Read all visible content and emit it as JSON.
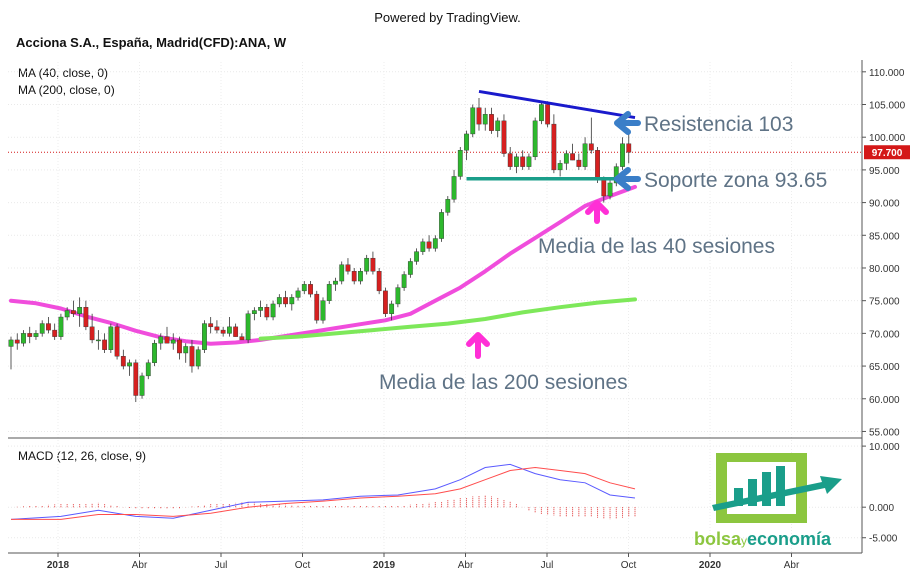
{
  "powered_by": "Powered by TradingView.",
  "symbol_title": "Acciona S.A., España, Madrid(CFD):ANA, W",
  "indicators": {
    "ma40_label": "MA (40, close, 0)",
    "ma200_label": "MA (200, close, 0)",
    "macd_label": "MACD (12, 26, close, 9)"
  },
  "price_tag": "97.700",
  "annotations": {
    "resistance": "Resistencia 103",
    "support": "Soporte zona 93.65",
    "ma40_note": "Media de las 40 sesiones",
    "ma200_note": "Media de las 200 sesiones"
  },
  "logo": {
    "text_a": "bolsa",
    "text_y": "y",
    "text_b": "economía"
  },
  "colors": {
    "up": "#2db82d",
    "down": "#d62020",
    "ma40": "#f04ddc",
    "ma200": "#7ee85a",
    "resistance_line": "#1a1acc",
    "support_line": "#1a9e8a",
    "arrow_blue": "#3a7ec8",
    "arrow_magenta": "#ff2fd6",
    "macd_line": "#5a5aff",
    "signal_line": "#ff4d4d",
    "annotation_text": "#5f7386",
    "price_tag_bg": "#d41818",
    "logo_green": "#8cc63f",
    "logo_teal": "#1a9e8a"
  },
  "chart_data": [
    {
      "type": "candlestick",
      "title": "Acciona S.A., España, Madrid(CFD):ANA, W",
      "x_ticks": [
        "2018",
        "Abr",
        "Jul",
        "Oct",
        "2019",
        "Abr",
        "Jul",
        "Oct",
        "2020",
        "Abr"
      ],
      "y_ticks": [
        "110.000",
        "105.000",
        "100.000",
        "95.000",
        "90.000",
        "85.000",
        "80.000",
        "75.000",
        "70.000",
        "65.000",
        "60.000",
        "55.000"
      ],
      "ylim": [
        54,
        111.5
      ],
      "last_price": 97.7,
      "candles": [
        [
          68.0,
          69.5,
          64.5,
          69.0
        ],
        [
          69.0,
          70.0,
          67.5,
          68.5
        ],
        [
          68.5,
          70.5,
          68.0,
          70.0
        ],
        [
          70.0,
          71.0,
          68.5,
          69.5
        ],
        [
          69.5,
          70.5,
          69.0,
          70.0
        ],
        [
          70.0,
          72.0,
          69.5,
          71.5
        ],
        [
          71.5,
          72.5,
          70.0,
          70.5
        ],
        [
          70.5,
          71.5,
          69.0,
          69.5
        ],
        [
          69.5,
          73.0,
          69.0,
          72.5
        ],
        [
          72.5,
          74.0,
          72.0,
          73.5
        ],
        [
          73.5,
          75.0,
          72.5,
          73.0
        ],
        [
          73.0,
          75.5,
          71.0,
          74.0
        ],
        [
          74.0,
          75.0,
          70.5,
          71.0
        ],
        [
          71.0,
          73.0,
          68.5,
          69.0
        ],
        [
          69.0,
          70.5,
          67.5,
          69.0
        ],
        [
          69.0,
          70.0,
          67.0,
          67.5
        ],
        [
          67.5,
          71.5,
          67.0,
          71.0
        ],
        [
          71.0,
          71.5,
          66.0,
          66.5
        ],
        [
          66.5,
          67.5,
          64.5,
          65.0
        ],
        [
          65.0,
          66.0,
          63.5,
          65.5
        ],
        [
          65.5,
          66.0,
          59.5,
          60.5
        ],
        [
          60.5,
          64.0,
          60.0,
          63.5
        ],
        [
          63.5,
          66.0,
          63.0,
          65.5
        ],
        [
          65.5,
          69.0,
          65.0,
          68.5
        ],
        [
          68.5,
          70.0,
          67.5,
          69.5
        ],
        [
          69.5,
          71.0,
          68.5,
          68.5
        ],
        [
          68.5,
          70.0,
          67.5,
          69.0
        ],
        [
          69.0,
          69.5,
          66.0,
          67.0
        ],
        [
          67.0,
          68.5,
          65.5,
          68.0
        ],
        [
          68.0,
          69.0,
          64.0,
          65.0
        ],
        [
          65.0,
          68.0,
          64.5,
          67.5
        ],
        [
          67.5,
          72.0,
          67.0,
          71.5
        ],
        [
          71.5,
          72.5,
          70.0,
          71.0
        ],
        [
          71.0,
          72.0,
          70.0,
          70.5
        ],
        [
          70.5,
          71.0,
          69.5,
          70.0
        ],
        [
          70.0,
          72.5,
          69.5,
          71.0
        ],
        [
          71.0,
          71.5,
          69.5,
          69.5
        ],
        [
          69.5,
          70.0,
          69.0,
          69.0
        ],
        [
          69.0,
          73.5,
          68.5,
          73.0
        ],
        [
          73.0,
          74.0,
          72.0,
          73.5
        ],
        [
          73.5,
          75.0,
          72.5,
          74.0
        ],
        [
          74.0,
          74.5,
          72.0,
          72.5
        ],
        [
          72.5,
          75.0,
          72.0,
          74.5
        ],
        [
          74.5,
          76.0,
          74.0,
          75.5
        ],
        [
          75.5,
          76.5,
          74.0,
          74.5
        ],
        [
          74.5,
          76.0,
          73.5,
          75.5
        ],
        [
          75.5,
          77.0,
          75.0,
          76.5
        ],
        [
          76.5,
          78.0,
          76.0,
          77.5
        ],
        [
          77.5,
          78.0,
          75.5,
          76.0
        ],
        [
          76.0,
          76.5,
          71.5,
          72.0
        ],
        [
          72.0,
          75.5,
          71.5,
          75.0
        ],
        [
          75.0,
          78.0,
          74.5,
          77.5
        ],
        [
          77.5,
          78.5,
          76.5,
          78.0
        ],
        [
          78.0,
          81.0,
          77.5,
          80.5
        ],
        [
          80.5,
          81.5,
          79.0,
          79.5
        ],
        [
          79.5,
          80.0,
          77.5,
          78.0
        ],
        [
          78.0,
          80.0,
          77.5,
          79.5
        ],
        [
          79.5,
          82.0,
          79.0,
          81.5
        ],
        [
          81.5,
          82.5,
          79.0,
          79.5
        ],
        [
          79.5,
          80.0,
          76.0,
          76.5
        ],
        [
          76.5,
          77.0,
          72.5,
          73.0
        ],
        [
          73.0,
          75.0,
          72.0,
          74.5
        ],
        [
          74.5,
          77.5,
          74.0,
          77.0
        ],
        [
          77.0,
          79.5,
          76.5,
          79.0
        ],
        [
          79.0,
          81.5,
          78.5,
          81.0
        ],
        [
          81.0,
          83.0,
          80.5,
          82.5
        ],
        [
          82.5,
          84.5,
          82.0,
          84.0
        ],
        [
          84.0,
          85.0,
          82.5,
          83.0
        ],
        [
          83.0,
          85.0,
          82.5,
          84.5
        ],
        [
          84.5,
          89.0,
          84.0,
          88.5
        ],
        [
          88.5,
          91.0,
          88.0,
          90.5
        ],
        [
          90.5,
          95.0,
          90.0,
          94.0
        ],
        [
          94.0,
          98.5,
          93.5,
          98.0
        ],
        [
          98.0,
          101.0,
          96.5,
          100.5
        ],
        [
          100.5,
          105.0,
          100.0,
          104.5
        ],
        [
          104.5,
          106.0,
          101.0,
          102.0
        ],
        [
          102.0,
          104.5,
          101.0,
          103.5
        ],
        [
          103.5,
          104.5,
          100.5,
          101.0
        ],
        [
          101.0,
          103.0,
          100.0,
          102.5
        ],
        [
          102.5,
          103.5,
          97.0,
          97.5
        ],
        [
          97.5,
          98.5,
          95.0,
          95.5
        ],
        [
          95.5,
          97.5,
          94.5,
          97.0
        ],
        [
          97.0,
          98.0,
          95.0,
          95.5
        ],
        [
          95.5,
          97.5,
          95.0,
          97.0
        ],
        [
          97.0,
          103.0,
          96.5,
          102.5
        ],
        [
          102.5,
          105.5,
          102.0,
          105.0
        ],
        [
          105.0,
          105.5,
          101.5,
          102.0
        ],
        [
          102.0,
          103.5,
          94.5,
          95.0
        ],
        [
          95.0,
          96.5,
          94.0,
          96.0
        ],
        [
          96.0,
          98.0,
          95.0,
          97.5
        ],
        [
          97.5,
          99.0,
          96.5,
          96.5
        ],
        [
          96.5,
          97.5,
          95.0,
          95.5
        ],
        [
          95.5,
          100.0,
          95.0,
          99.0
        ],
        [
          99.0,
          103.0,
          97.5,
          98.0
        ],
        [
          98.0,
          98.5,
          93.0,
          93.5
        ],
        [
          93.5,
          94.0,
          90.0,
          91.0
        ],
        [
          91.0,
          93.5,
          90.5,
          93.0
        ],
        [
          93.0,
          96.0,
          92.5,
          95.5
        ],
        [
          95.5,
          100.0,
          95.0,
          99.0
        ],
        [
          99.0,
          101.0,
          96.0,
          97.7
        ]
      ],
      "series": [
        {
          "name": "MA (40, close, 0)",
          "points": [
            [
              0,
              75.0
            ],
            [
              4,
              74.6
            ],
            [
              8,
              73.8
            ],
            [
              12,
              72.6
            ],
            [
              16,
              71.6
            ],
            [
              20,
              70.4
            ],
            [
              24,
              69.4
            ],
            [
              28,
              68.8
            ],
            [
              32,
              68.4
            ],
            [
              36,
              68.6
            ],
            [
              40,
              69.0
            ],
            [
              44,
              69.6
            ],
            [
              48,
              70.2
            ],
            [
              52,
              70.8
            ],
            [
              56,
              71.4
            ],
            [
              60,
              72.0
            ],
            [
              64,
              73.0
            ],
            [
              68,
              75.0
            ],
            [
              72,
              77.0
            ],
            [
              76,
              79.5
            ],
            [
              80,
              82.2
            ],
            [
              84,
              84.6
            ],
            [
              88,
              87.0
            ],
            [
              92,
              89.5
            ],
            [
              96,
              91.0
            ],
            [
              100,
              92.4
            ]
          ]
        },
        {
          "name": "MA (200, close, 0)",
          "points": [
            [
              40,
              69.2
            ],
            [
              46,
              69.5
            ],
            [
              52,
              70.0
            ],
            [
              58,
              70.5
            ],
            [
              64,
              71.0
            ],
            [
              70,
              71.5
            ],
            [
              76,
              72.2
            ],
            [
              82,
              73.2
            ],
            [
              88,
              74.0
            ],
            [
              94,
              74.7
            ],
            [
              100,
              75.2
            ]
          ]
        }
      ],
      "resistance_line": [
        [
          75,
          107.0
        ],
        [
          100,
          103.0
        ]
      ],
      "support_line": {
        "level": 93.65,
        "from": 73,
        "to": 100
      }
    },
    {
      "type": "line",
      "title": "MACD (12, 26, close, 9)",
      "y_ticks": [
        "10.000",
        "0.000",
        "-5.000"
      ],
      "ylim": [
        -7.5,
        11
      ],
      "series": [
        {
          "name": "MACD",
          "points": [
            [
              0,
              -2.0
            ],
            [
              8,
              -1.5
            ],
            [
              14,
              -0.5
            ],
            [
              20,
              -1.5
            ],
            [
              26,
              -1.8
            ],
            [
              32,
              -0.5
            ],
            [
              38,
              0.8
            ],
            [
              44,
              1.0
            ],
            [
              50,
              1.2
            ],
            [
              56,
              1.8
            ],
            [
              62,
              2.0
            ],
            [
              68,
              3.0
            ],
            [
              72,
              4.5
            ],
            [
              76,
              6.5
            ],
            [
              80,
              7.0
            ],
            [
              84,
              5.5
            ],
            [
              88,
              4.5
            ],
            [
              92,
              4.0
            ],
            [
              96,
              2.0
            ],
            [
              100,
              1.5
            ]
          ]
        },
        {
          "name": "Signal",
          "points": [
            [
              0,
              -2.0
            ],
            [
              8,
              -2.0
            ],
            [
              14,
              -1.2
            ],
            [
              20,
              -1.2
            ],
            [
              26,
              -1.5
            ],
            [
              32,
              -1.0
            ],
            [
              38,
              0.0
            ],
            [
              44,
              0.6
            ],
            [
              50,
              1.0
            ],
            [
              56,
              1.5
            ],
            [
              62,
              1.8
            ],
            [
              68,
              2.2
            ],
            [
              72,
              3.0
            ],
            [
              76,
              4.5
            ],
            [
              80,
              6.0
            ],
            [
              84,
              6.5
            ],
            [
              88,
              6.0
            ],
            [
              92,
              5.5
            ],
            [
              96,
              4.0
            ],
            [
              100,
              3.0
            ]
          ]
        }
      ]
    }
  ]
}
